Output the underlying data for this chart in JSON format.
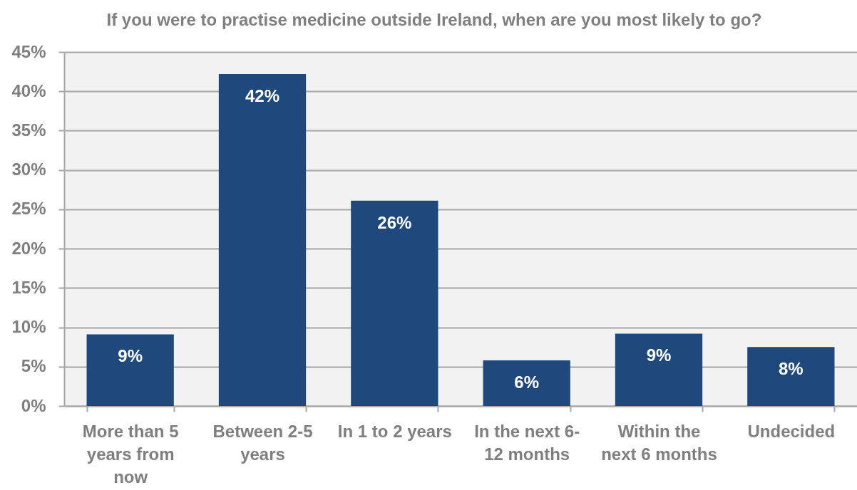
{
  "chart_data": {
    "type": "bar",
    "title": "If you were to practise medicine outside Ireland, when are you most likely to go?",
    "categories": [
      "More than 5 years from now",
      "Between 2-5 years",
      "In 1 to 2 years",
      "In the next 6-12 months",
      "Within the next 6 months",
      "Undecided"
    ],
    "values": [
      9.1,
      42.2,
      26.1,
      5.8,
      9.2,
      7.5
    ],
    "color": "#1f497d",
    "value_labels": [
      "9%",
      "42%",
      "26%",
      "6%",
      "9%",
      "8%"
    ],
    "ylim": [
      0,
      45
    ],
    "yticks": [
      {
        "value": 0,
        "label": "0%"
      },
      {
        "value": 5,
        "label": "5%"
      },
      {
        "value": 10,
        "label": "10%"
      },
      {
        "value": 15,
        "label": "15%"
      },
      {
        "value": 20,
        "label": "20%"
      },
      {
        "value": 25,
        "label": "25%"
      },
      {
        "value": 30,
        "label": "30%"
      },
      {
        "value": 35,
        "label": "35%"
      },
      {
        "value": 40,
        "label": "40%"
      },
      {
        "value": 45,
        "label": "45%"
      }
    ],
    "grid": "y"
  }
}
